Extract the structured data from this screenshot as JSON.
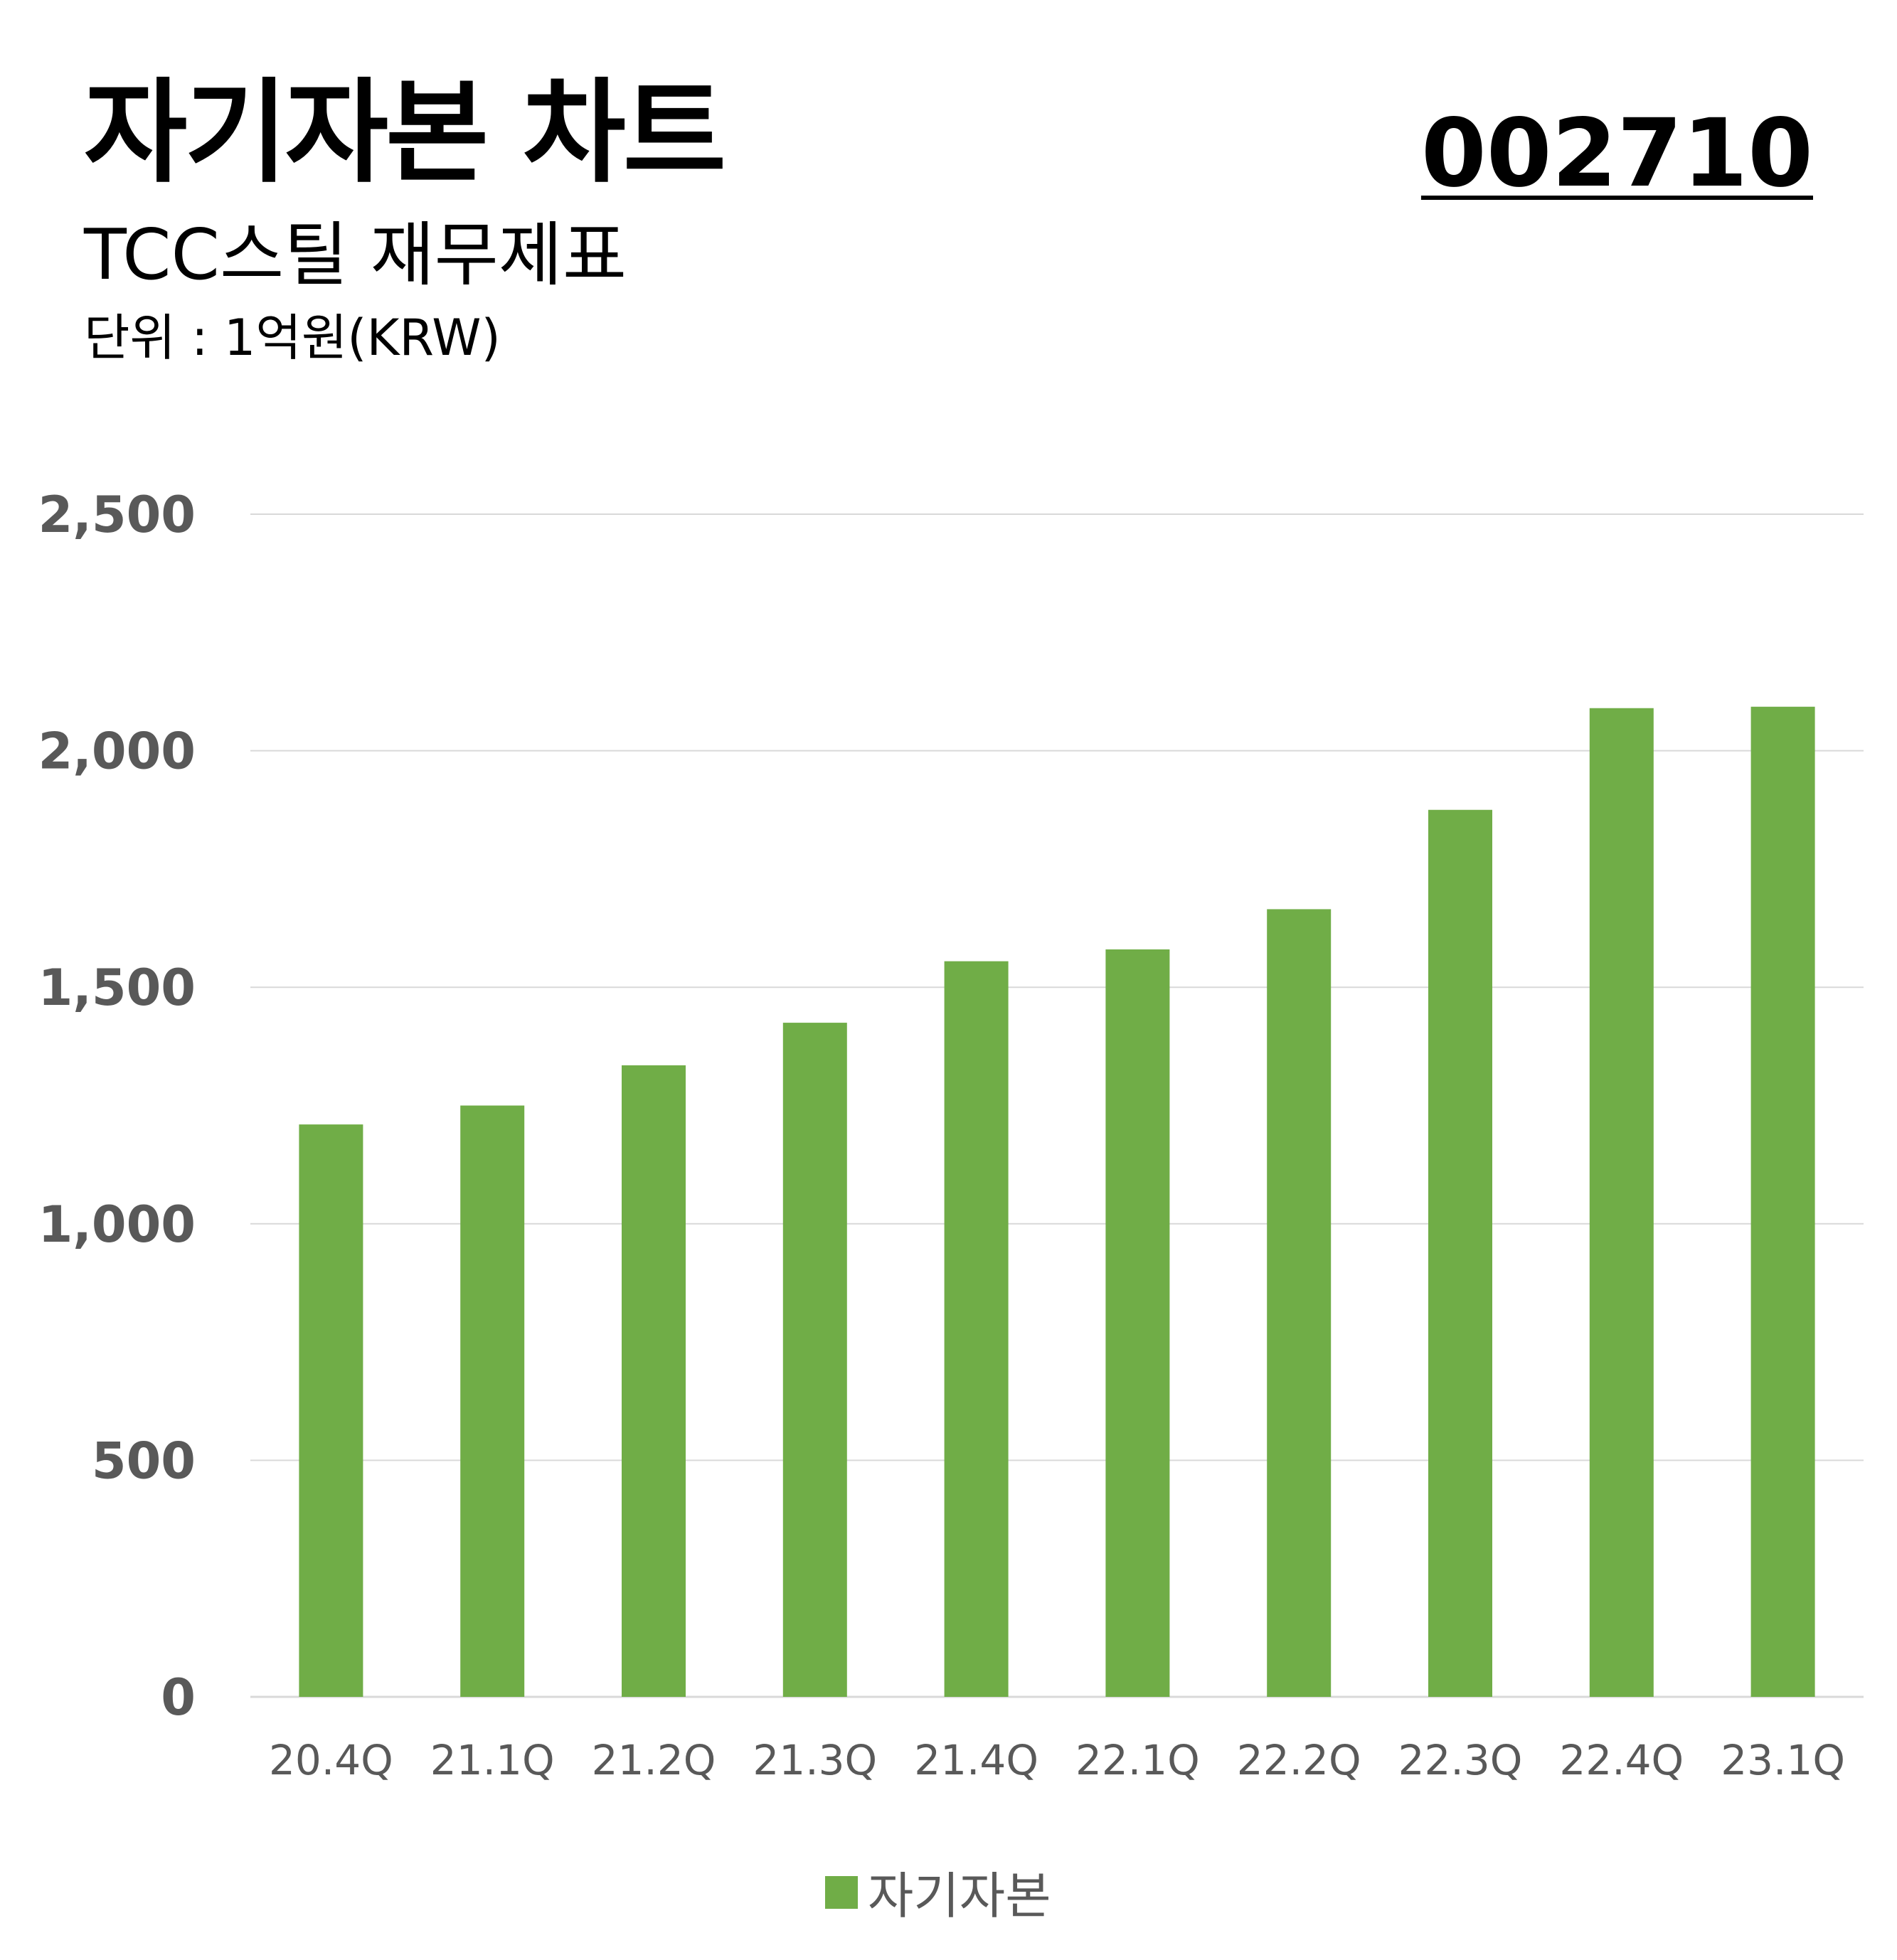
{
  "header": {
    "title": "자기자본 차트",
    "stock_code": "002710",
    "subtitle": "TCC스틸 재무제표",
    "unit": "단위 : 1억원(KRW)"
  },
  "colors": {
    "bar": "#70AD47",
    "grid": "#D9D9D9",
    "tick": "#595959"
  },
  "chart_data": {
    "type": "bar",
    "categories": [
      "20.4Q",
      "21.1Q",
      "21.2Q",
      "21.3Q",
      "21.4Q",
      "22.1Q",
      "22.2Q",
      "22.3Q",
      "22.4Q",
      "23.1Q"
    ],
    "series": [
      {
        "name": "자기자본",
        "values": [
          1210,
          1250,
          1335,
          1425,
          1555,
          1580,
          1665,
          1875,
          2090,
          2093
        ]
      }
    ],
    "ylim": [
      0,
      2500
    ],
    "yticks": [
      0,
      500,
      1000,
      1500,
      2000,
      2500
    ],
    "ytick_labels": [
      "0",
      "500",
      "1,000",
      "1,500",
      "2,000",
      "2,500"
    ],
    "grid": true,
    "legend": "bottom"
  }
}
